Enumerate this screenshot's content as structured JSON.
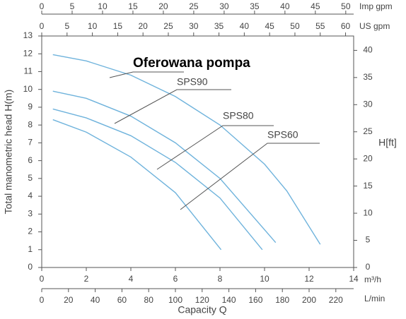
{
  "chart_data": {
    "type": "line",
    "y_label": "Total manometric head H(m)",
    "y2_label": "H[ft]",
    "x_label": "Capacity Q",
    "x_unit": "m³/h",
    "xlim": [
      0,
      14
    ],
    "xticks": [
      0,
      2,
      4,
      6,
      8,
      10,
      12,
      14
    ],
    "ylim": [
      0,
      13
    ],
    "yticks": [
      0,
      1,
      2,
      3,
      4,
      5,
      6,
      7,
      8,
      9,
      10,
      11,
      12,
      13
    ],
    "y2lim": [
      0,
      42.65
    ],
    "y2ticks": [
      0,
      5,
      10,
      15,
      20,
      25,
      30,
      35,
      40
    ],
    "extra_x_axes": [
      {
        "unit": "L/min",
        "lim": [
          0,
          233.33
        ],
        "ticks": [
          0,
          20,
          40,
          60,
          80,
          100,
          120,
          140,
          160,
          180,
          200,
          220
        ]
      },
      {
        "unit": "US gpm",
        "lim": [
          0,
          61.6
        ],
        "ticks": [
          0,
          5,
          10,
          15,
          20,
          25,
          30,
          35,
          40,
          45,
          50,
          55,
          60
        ]
      },
      {
        "unit": "Imp gpm",
        "lim": [
          0,
          51.3
        ],
        "ticks": [
          0,
          5,
          10,
          15,
          20,
          25,
          30,
          35,
          40,
          45,
          50
        ]
      }
    ],
    "color": "#6fb3dc",
    "series": [
      {
        "x": [
          0.5,
          2,
          4,
          6,
          8,
          10,
          11,
          12.5
        ],
        "values": [
          11.95,
          11.6,
          10.8,
          9.6,
          8.0,
          5.8,
          4.3,
          1.3
        ]
      },
      {
        "x": [
          0.5,
          2,
          4,
          6,
          8,
          10.5
        ],
        "values": [
          9.9,
          9.5,
          8.5,
          7.0,
          5.0,
          1.4
        ]
      },
      {
        "x": [
          0.5,
          2,
          4,
          6,
          8,
          9.9
        ],
        "values": [
          8.9,
          8.4,
          7.4,
          5.9,
          3.9,
          1.0
        ]
      },
      {
        "x": [
          0.5,
          2,
          4,
          6,
          8.05
        ],
        "values": [
          8.3,
          7.6,
          6.2,
          4.2,
          1.0
        ]
      }
    ],
    "annotations": [
      "Oferowana pompa",
      "SPS90",
      "SPS80",
      "SPS60"
    ]
  }
}
